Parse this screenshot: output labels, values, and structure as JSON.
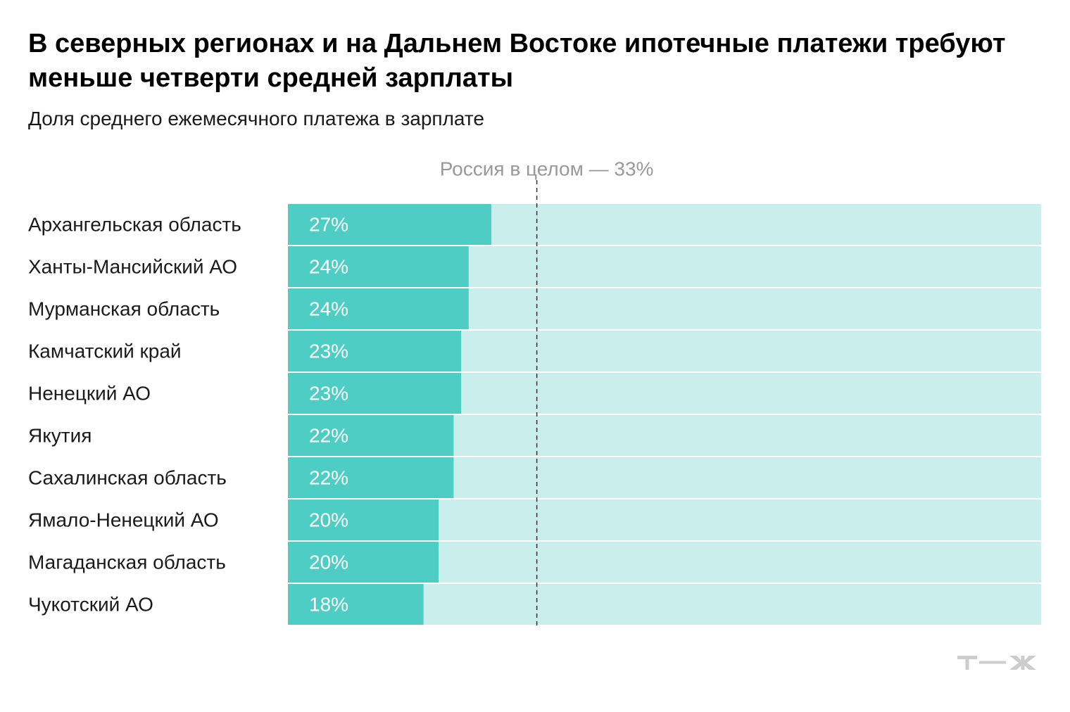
{
  "title": "В северных регионах и на Дальнем Востоке ипотечные платежи требуют меньше четверти средней зарплаты",
  "subtitle": "Доля среднего ежемесячного платежа в зарплате",
  "brand": "т—ж",
  "colors": {
    "bar": "#4ecdc4",
    "track": "#c9eeeb",
    "reference_line": "#333333",
    "reference_label": "#999999",
    "value_label": "#ffffff",
    "logo": "#cccccc"
  },
  "chart_data": {
    "type": "bar",
    "orientation": "horizontal",
    "categories": [
      "Архангельская область",
      "Ханты-Мансийский АО",
      "Мурманская область",
      "Камчатский край",
      "Ненецкий АО",
      "Якутия",
      "Сахалинская область",
      "Ямало-Ненецкий АО",
      "Магаданская область",
      "Чукотский АО"
    ],
    "values": [
      27,
      24,
      24,
      23,
      23,
      22,
      22,
      20,
      20,
      18
    ],
    "value_labels": [
      "27%",
      "24%",
      "24%",
      "23%",
      "23%",
      "22%",
      "22%",
      "20%",
      "20%",
      "18%"
    ],
    "unit": "%",
    "xlim": [
      0,
      100
    ],
    "reference": {
      "value": 33,
      "label": "Россия в целом — 33%"
    },
    "grid": false,
    "legend": "none"
  }
}
